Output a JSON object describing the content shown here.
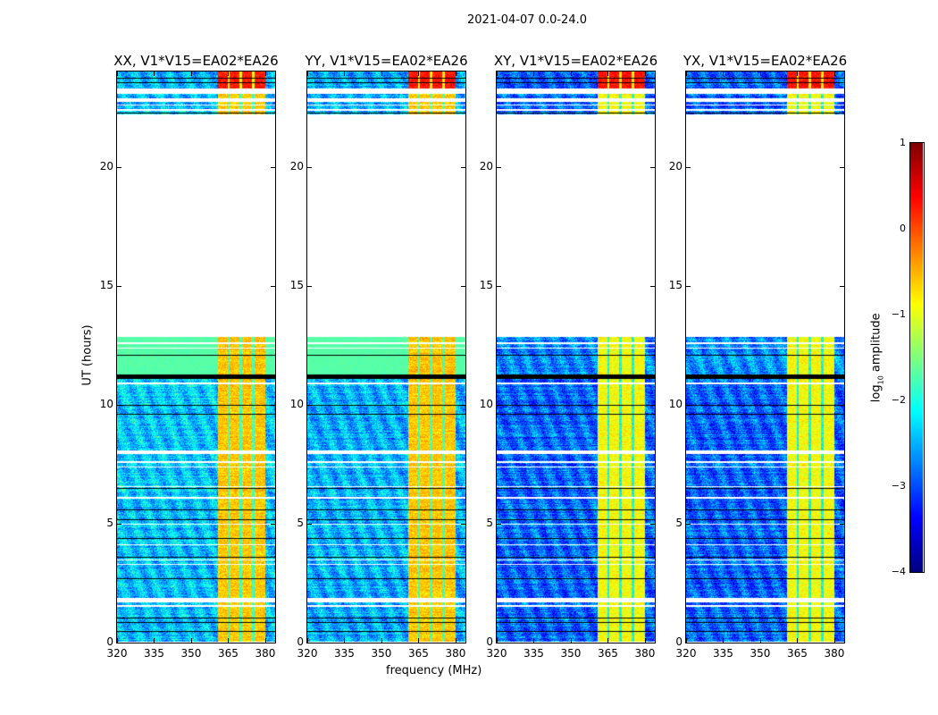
{
  "suptitle": "2021-04-07 0.0-24.0",
  "chart_data": {
    "type": "heatmap",
    "title": "2021-04-07 0.0-24.0",
    "xlabel": "frequency (MHz)",
    "ylabel": "UT (hours)",
    "xlim": [
      320,
      384
    ],
    "ylim": [
      0,
      24
    ],
    "xticks": [
      "320",
      "335",
      "350",
      "365",
      "380"
    ],
    "yticks": [
      "0",
      "5",
      "10",
      "15",
      "20"
    ],
    "panels": [
      {
        "title": "XX, V1*V15=EA02*EA26",
        "background_log_amp": -2.4,
        "upper_block_log_amp": -1.7,
        "band_log_amp": -0.6,
        "late_band_log_amp": 0.3
      },
      {
        "title": "YY, V1*V15=EA02*EA26",
        "background_log_amp": -2.5,
        "upper_block_log_amp": -1.7,
        "band_log_amp": -0.6,
        "late_band_log_amp": 0.3
      },
      {
        "title": "XY, V1*V15=EA02*EA26",
        "background_log_amp": -2.9,
        "upper_block_log_amp": -2.7,
        "band_log_amp": -0.9,
        "late_band_log_amp": 0.3
      },
      {
        "title": "YX, V1*V15=EA02*EA26",
        "background_log_amp": -2.9,
        "upper_block_log_amp": -2.7,
        "band_log_amp": -0.9,
        "late_band_log_amp": 0.3
      }
    ],
    "data_time_ranges_hours": [
      [
        0.05,
        12.85
      ],
      [
        22.2,
        24.0
      ]
    ],
    "bright_band_mhz": [
      360.5,
      380
    ],
    "colorbar": {
      "label": "log10 amplitude",
      "label_main": "log",
      "label_sub": "10",
      "label_rest": " amplitude",
      "range": [
        -4,
        1
      ],
      "ticks": [
        "1",
        "0",
        "−1",
        "−2",
        "−3",
        "−4"
      ],
      "colormap": "jet"
    }
  }
}
